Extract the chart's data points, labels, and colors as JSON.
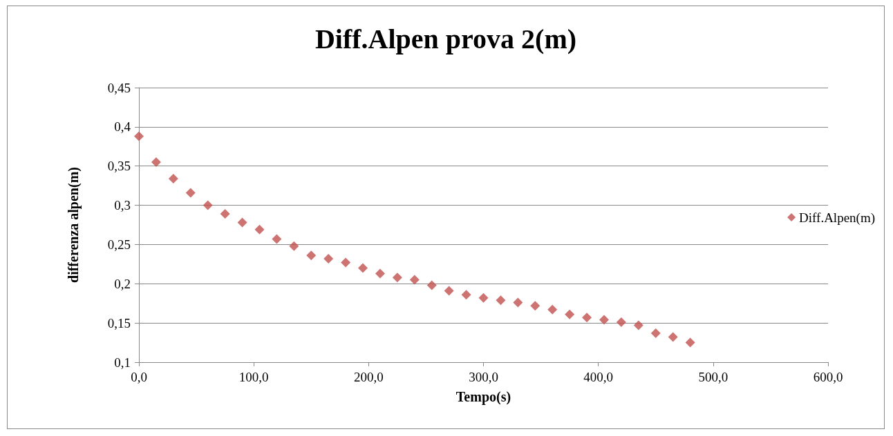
{
  "chart_data": {
    "type": "scatter",
    "title": "Diff.Alpen prova 2(m)",
    "xlabel": "Tempo(s)",
    "ylabel": "differenza alpen(m)",
    "x": [
      0,
      15,
      30,
      45,
      60,
      75,
      90,
      105,
      120,
      135,
      150,
      165,
      180,
      195,
      210,
      225,
      240,
      255,
      270,
      285,
      300,
      315,
      330,
      345,
      360,
      375,
      390,
      405,
      420,
      435,
      450,
      465,
      480
    ],
    "series": [
      {
        "name": "Diff.Alpen(m)",
        "color": "#c0504d",
        "values": [
          0.388,
          0.355,
          0.334,
          0.316,
          0.3,
          0.289,
          0.278,
          0.269,
          0.257,
          0.248,
          0.236,
          0.232,
          0.227,
          0.22,
          0.213,
          0.208,
          0.205,
          0.198,
          0.191,
          0.186,
          0.182,
          0.179,
          0.176,
          0.172,
          0.167,
          0.161,
          0.157,
          0.154,
          0.151,
          0.147,
          0.137,
          0.132,
          0.125
        ]
      }
    ],
    "xlim": [
      0,
      600
    ],
    "xticks": [
      {
        "value": 0,
        "label": "0,0"
      },
      {
        "value": 100,
        "label": "100,0"
      },
      {
        "value": 200,
        "label": "200,0"
      },
      {
        "value": 300,
        "label": "300,0"
      },
      {
        "value": 400,
        "label": "400,0"
      },
      {
        "value": 500,
        "label": "500,0"
      },
      {
        "value": 600,
        "label": "600,0"
      }
    ],
    "ylim": [
      0.1,
      0.45
    ],
    "yticks": [
      {
        "value": 0.1,
        "label": "0,1"
      },
      {
        "value": 0.15,
        "label": "0,15"
      },
      {
        "value": 0.2,
        "label": "0,2"
      },
      {
        "value": 0.25,
        "label": "0,25"
      },
      {
        "value": 0.3,
        "label": "0,3"
      },
      {
        "value": 0.35,
        "label": "0,35"
      },
      {
        "value": 0.4,
        "label": "0,4"
      },
      {
        "value": 0.45,
        "label": "0,45"
      }
    ],
    "grid": "y",
    "legend": "right",
    "marker": "diamond"
  }
}
